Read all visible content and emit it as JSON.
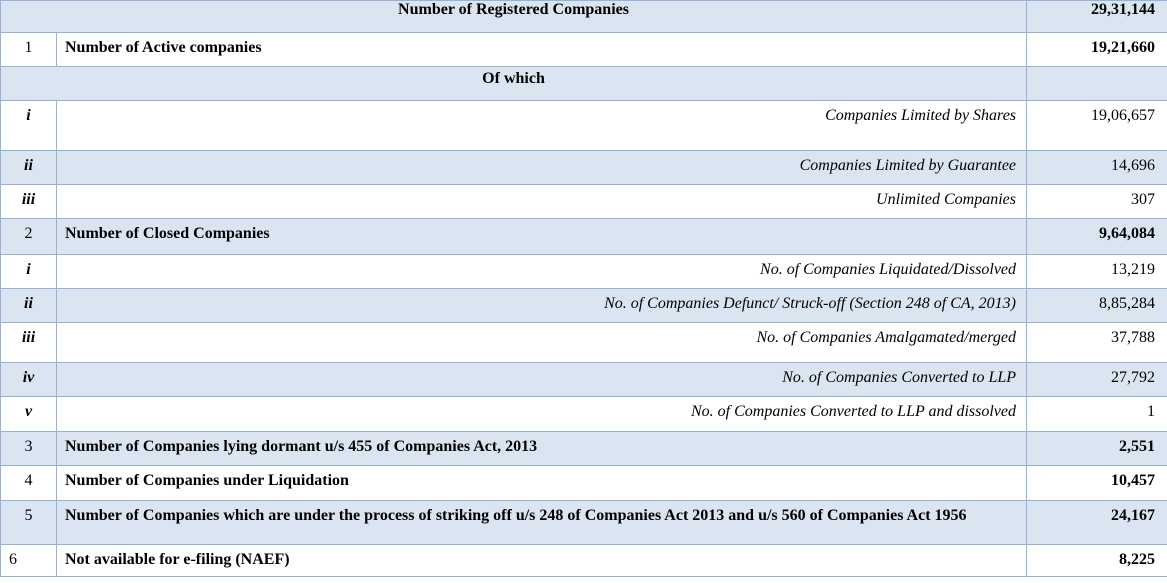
{
  "header": {
    "title": "Number of Registered Companies",
    "value": "29,31,144"
  },
  "of_which_label": "Of which",
  "rows": [
    {
      "no": "1",
      "label": "Number of Active companies",
      "value": "19,21,660"
    },
    {
      "no": "i",
      "label": "Companies Limited by Shares",
      "value": "19,06,657"
    },
    {
      "no": "ii",
      "label": "Companies Limited by Guarantee",
      "value": "14,696"
    },
    {
      "no": "iii",
      "label": "Unlimited Companies",
      "value": "307"
    },
    {
      "no": "2",
      "label": "Number of Closed Companies",
      "value": "9,64,084"
    },
    {
      "no": "i",
      "label": "No. of Companies Liquidated/Dissolved",
      "value": "13,219"
    },
    {
      "no": "ii",
      "label": "No. of Companies Defunct/ Struck-off (Section 248 of CA, 2013)",
      "value": "8,85,284"
    },
    {
      "no": "iii",
      "label": "No. of Companies Amalgamated/merged",
      "value": "37,788"
    },
    {
      "no": "iv",
      "label": "No. of Companies Converted to LLP",
      "value": "27,792"
    },
    {
      "no": "v",
      "label": "No. of Companies Converted to LLP and dissolved",
      "value": "1"
    },
    {
      "no": "3",
      "label": "Number of Companies lying dormant u/s 455 of Companies Act, 2013",
      "value": "2,551"
    },
    {
      "no": "4",
      "label": "Number of Companies under Liquidation",
      "value": "10,457"
    },
    {
      "no": "5",
      "label": "Number of Companies which are under the process of striking off u/s 248 of Companies Act 2013 and u/s 560 of Companies Act 1956",
      "value": "24,167"
    },
    {
      "no": "6",
      "label": "Not available for e-filing (NAEF)",
      "value": "8,225"
    }
  ]
}
